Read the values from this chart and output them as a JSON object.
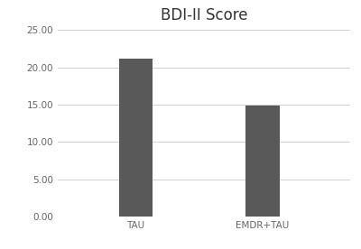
{
  "title": "BDI-II Score",
  "categories": [
    "TAU",
    "EMDR+TAU"
  ],
  "values": [
    21.2,
    14.85
  ],
  "bar_color": "#595959",
  "background_color": "#ffffff",
  "ylim": [
    0,
    25
  ],
  "yticks": [
    0.0,
    5.0,
    10.0,
    15.0,
    20.0,
    25.0
  ],
  "grid_color": "#d0d0d0",
  "title_fontsize": 12,
  "tick_fontsize": 7.5,
  "bar_width": 0.35,
  "xlim": [
    -0.5,
    2.5
  ],
  "bar_positions": [
    0.3,
    1.6
  ]
}
